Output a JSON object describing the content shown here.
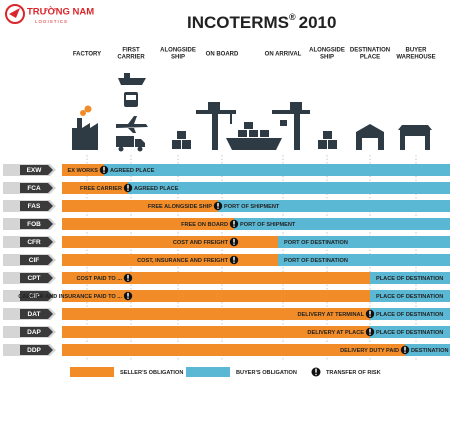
{
  "logo": {
    "name": "TRƯỜNG NAM",
    "tagline": "LOGISTICS"
  },
  "header": {
    "title": "INCOTERMS",
    "mark": "®",
    "year": "2010"
  },
  "columns": [
    {
      "lines": [
        "FACTORY"
      ]
    },
    {
      "lines": [
        "FIRST",
        "CARRIER"
      ]
    },
    {
      "lines": [
        "ALONGSIDE",
        "SHIP"
      ]
    },
    {
      "lines": [
        "ON BOARD"
      ]
    },
    {
      "lines": [
        "ON ARRIVAL"
      ]
    },
    {
      "lines": [
        "ALONGSIDE",
        "SHIP"
      ]
    },
    {
      "lines": [
        "DESTINATION",
        "PLACE"
      ]
    },
    {
      "lines": [
        "BUYER",
        "WAREHOUSE"
      ]
    }
  ],
  "rows": [
    {
      "code": "EXW",
      "seller_text": "EX WORKS",
      "buyer_text": "AGREED PLACE"
    },
    {
      "code": "FCA",
      "seller_text": "FREE CARRIER",
      "buyer_text": "AGREED PLACE"
    },
    {
      "code": "FAS",
      "seller_text": "FREE ALONGSIDE SHIP",
      "buyer_text": "PORT OF SHIPMENT"
    },
    {
      "code": "FOB",
      "seller_text": "FREE ON BOARD",
      "buyer_text": "PORT OF SHIPMENT"
    },
    {
      "code": "CFR",
      "seller_text": "COST AND FREIGHT",
      "buyer_text": "PORT OF DESTINATION"
    },
    {
      "code": "CIF",
      "seller_text": "COST, INSURANCE AND FREIGHT",
      "buyer_text": "PORT OF DESTINATION"
    },
    {
      "code": "CPT",
      "seller_text": "COST PAID TO ...",
      "buyer_text": "PLACE OF DESTINATION"
    },
    {
      "code": "CIP",
      "seller_text": "CARRIER AND INSURANCE PAID TO ...",
      "buyer_text": "PLACE OF DESTINATION"
    },
    {
      "code": "DAT",
      "seller_text": "DELIVERY AT TERMINAL",
      "buyer_text": "PLACE OF DESTINATION"
    },
    {
      "code": "DAP",
      "seller_text": "DELIVERY AT PLACE",
      "buyer_text": "PLACE OF DESTINATION"
    },
    {
      "code": "DDP",
      "seller_text": "DELIVERY DUTY PAID",
      "buyer_text": "DESTINATION"
    }
  ],
  "legend": {
    "seller": "SELLER'S OBLIGATION",
    "buyer": "BUYER'S OBLIGATION",
    "risk": "TRANSFER OF RISK"
  }
}
